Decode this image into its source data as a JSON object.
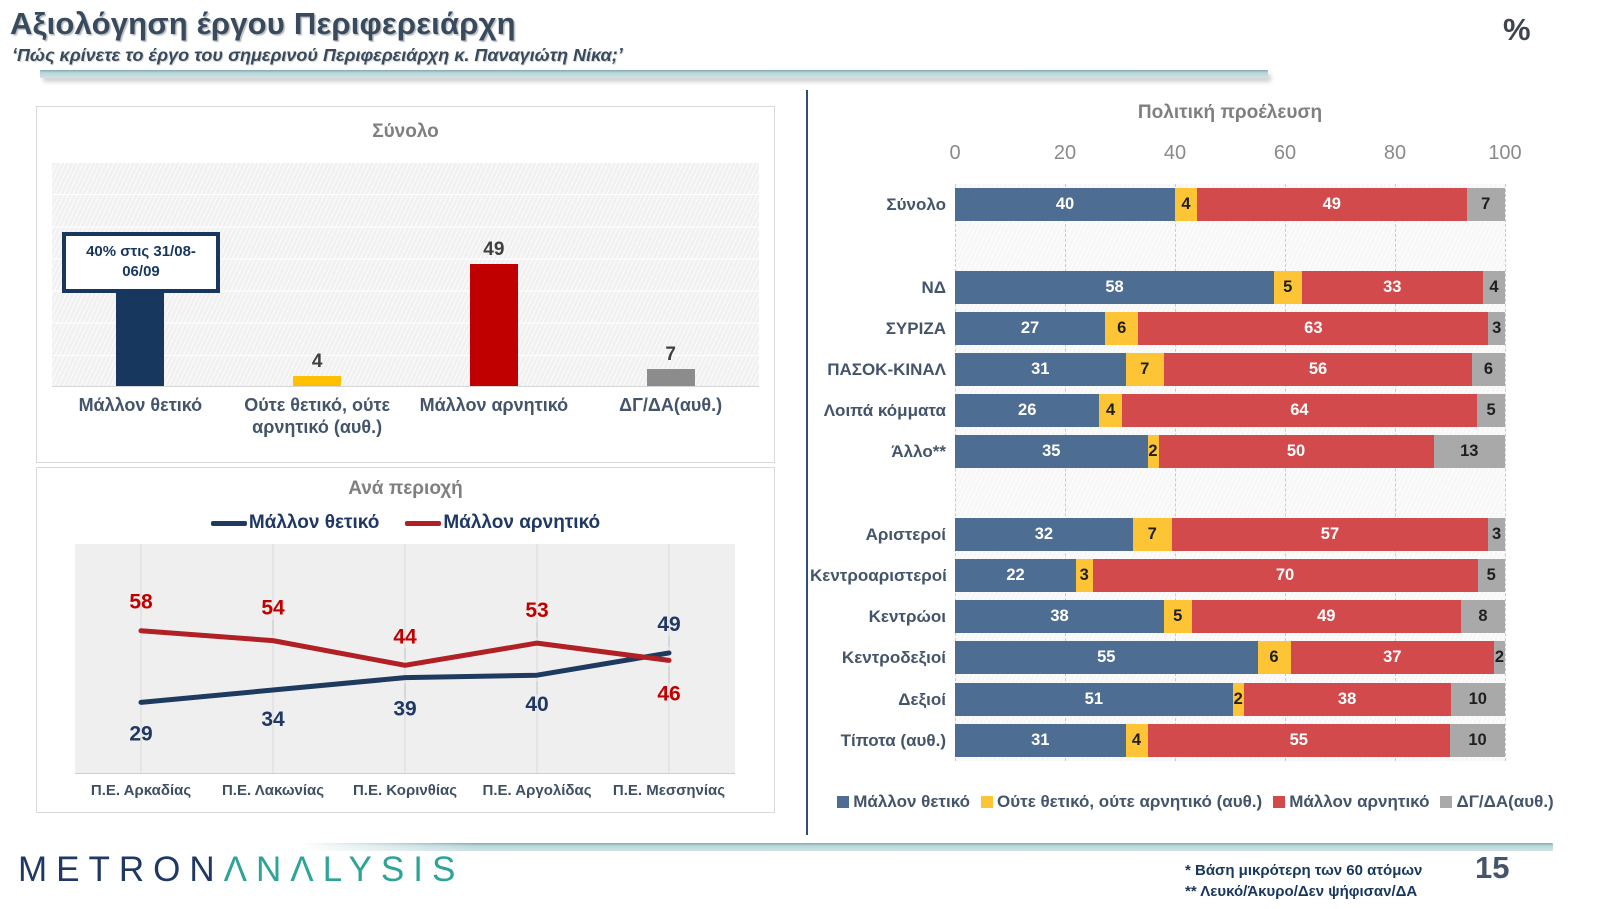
{
  "header": {
    "title": "Αξιολόγηση έργου Περιφερειάρχη",
    "subtitle": "‘Πώς κρίνετε το έργο του σημερινού  Περιφερειάρχη κ. Παναγιώτη Νίκα;’",
    "unit_label": "%"
  },
  "chart_data": [
    {
      "type": "bar",
      "title": "Σύνολο",
      "categories": [
        "Μάλλον θετικό",
        "Ούτε θετικό, ούτε αρνητικό (αυθ.)",
        "Μάλλον αρνητικό",
        "ΔΓ/ΔΑ(αυθ.)"
      ],
      "values": [
        40,
        4,
        49,
        7
      ],
      "colors": [
        "#17375e",
        "#ffc000",
        "#c00000",
        "#8c8c8c"
      ],
      "annotation": "40% στις 31/08-06/09",
      "ylim": [
        0,
        90
      ],
      "grid": true
    },
    {
      "type": "line",
      "title": "Ανά περιοχή",
      "categories": [
        "Π.Ε. Αρκαδίας",
        "Π.Ε. Λακωνίας",
        "Π.Ε. Κορινθίας",
        "Π.Ε. Αργολίδας",
        "Π.Ε. Μεσσηνίας"
      ],
      "series": [
        {
          "name": "Μάλλον θετικό",
          "color": "#1f3a5f",
          "label_color": "#1f3864",
          "values": [
            29,
            34,
            39,
            40,
            49
          ]
        },
        {
          "name": "Μάλλον αρνητικό",
          "color": "#b02025",
          "label_color": "#c00000",
          "values": [
            58,
            54,
            44,
            53,
            46
          ]
        }
      ],
      "ylim": [
        0,
        93
      ],
      "legend_position": "top"
    },
    {
      "type": "stacked-bar-horizontal",
      "title": "Πολιτική προέλευση",
      "x_ticks": [
        0,
        20,
        40,
        60,
        80,
        100
      ],
      "xlim": [
        0,
        100
      ],
      "series_names": [
        "Μάλλον θετικό",
        "Ούτε θετικό, ούτε αρνητικό (αυθ.)",
        "Μάλλον αρνητικό",
        "ΔΓ/ΔΑ(αυθ.)"
      ],
      "series_colors": [
        "#4d6d93",
        "#fdc435",
        "#d34a4c",
        "#a9a9a9"
      ],
      "series_label_colors": [
        "#ffffff",
        "#1f1f1f",
        "#ffffff",
        "#1f1f1f"
      ],
      "rows": [
        {
          "label": "Σύνολο",
          "values": [
            40,
            4,
            49,
            7
          ],
          "gap_after": 1
        },
        {
          "label": "ΝΔ",
          "values": [
            58,
            5,
            33,
            4
          ]
        },
        {
          "label": "ΣΥΡΙΖΑ",
          "values": [
            27,
            6,
            63,
            3
          ]
        },
        {
          "label": "ΠΑΣΟΚ-ΚΙΝΑΛ",
          "values": [
            31,
            7,
            56,
            6
          ]
        },
        {
          "label": "Λοιπά κόμματα",
          "values": [
            26,
            4,
            64,
            5
          ]
        },
        {
          "label": "Άλλο**",
          "values": [
            35,
            2,
            50,
            13
          ],
          "gap_after": 1
        },
        {
          "label": "Αριστεροί",
          "values": [
            32,
            7,
            57,
            3
          ]
        },
        {
          "label": "Κεντροαριστεροί",
          "values": [
            22,
            3,
            70,
            5
          ]
        },
        {
          "label": "Κεντρώοι",
          "values": [
            38,
            5,
            49,
            8
          ]
        },
        {
          "label": "Κεντροδεξιοί",
          "values": [
            55,
            6,
            37,
            2
          ]
        },
        {
          "label": "Δεξιοί",
          "values": [
            51,
            2,
            38,
            10
          ]
        },
        {
          "label": "Τίποτα (αυθ.)",
          "values": [
            31,
            4,
            55,
            10
          ]
        }
      ],
      "legend_position": "bottom"
    }
  ],
  "footer": {
    "logo_metron": "METRON",
    "logo_analysis": "ΛNΛLYSIS",
    "footnote1": "*  Βάση μικρότερη των 60 ατόμων",
    "footnote2": "** Λευκό/Άκυρο/Δεν ψήφισαν/ΔΑ",
    "page_number": "15"
  }
}
